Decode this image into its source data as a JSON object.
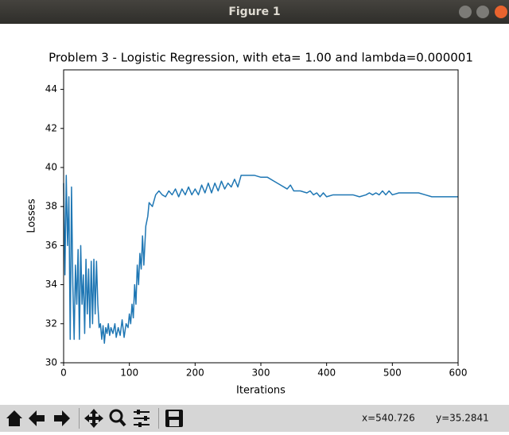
{
  "window": {
    "title": "Figure 1"
  },
  "status": {
    "x": "x=540.726",
    "y": "y=35.2841"
  },
  "chart_data": {
    "type": "line",
    "title": "Problem 3 - Logistic Regression, with eta= 1.00 and lambda=0.000001",
    "x_label": "Iterations",
    "y_label": "Losses",
    "xlim": [
      0,
      600
    ],
    "ylim": [
      30,
      45
    ],
    "xticks": [
      0,
      100,
      200,
      300,
      400,
      500,
      600
    ],
    "yticks": [
      30,
      32,
      34,
      36,
      38,
      40,
      42,
      44
    ],
    "series": [
      {
        "color": "#1f77b4",
        "x": [
          0,
          2,
          4,
          6,
          8,
          10,
          12,
          14,
          16,
          18,
          20,
          22,
          24,
          26,
          28,
          30,
          32,
          34,
          36,
          38,
          40,
          42,
          44,
          46,
          48,
          50,
          52,
          54,
          56,
          58,
          60,
          62,
          64,
          66,
          68,
          70,
          72,
          75,
          78,
          80,
          83,
          86,
          89,
          92,
          95,
          98,
          100,
          102,
          104,
          106,
          108,
          110,
          112,
          114,
          116,
          118,
          120,
          122,
          125,
          128,
          130,
          135,
          140,
          145,
          150,
          155,
          160,
          165,
          170,
          175,
          180,
          185,
          190,
          195,
          200,
          205,
          210,
          215,
          220,
          225,
          230,
          235,
          240,
          245,
          250,
          255,
          260,
          265,
          270,
          280,
          290,
          300,
          310,
          320,
          330,
          340,
          345,
          350,
          360,
          370,
          375,
          380,
          385,
          390,
          395,
          400,
          410,
          420,
          430,
          440,
          450,
          460,
          465,
          470,
          475,
          480,
          485,
          490,
          495,
          500,
          510,
          520,
          530,
          540,
          550,
          560,
          570,
          580,
          590,
          600
        ],
        "values": [
          39.2,
          34.5,
          39.6,
          36,
          38.5,
          31.2,
          39,
          34,
          31.2,
          35,
          33,
          35.8,
          31.2,
          36,
          33,
          34.5,
          31.5,
          35.3,
          32.5,
          34.8,
          31.8,
          35.2,
          32,
          35.3,
          32.5,
          35.2,
          33,
          31.8,
          32,
          31.2,
          31.9,
          31,
          31.8,
          31.5,
          32,
          31.4,
          31.8,
          31.5,
          32,
          31.3,
          31.8,
          31.4,
          32.2,
          31.3,
          32,
          31.8,
          32.5,
          32,
          33,
          32.3,
          34,
          33,
          35,
          34,
          35.6,
          34.8,
          36.5,
          35,
          37,
          37.5,
          38.2,
          38,
          38.6,
          38.8,
          38.6,
          38.5,
          38.8,
          38.6,
          38.9,
          38.5,
          38.9,
          38.6,
          39,
          38.6,
          38.9,
          38.6,
          39.1,
          38.7,
          39.2,
          38.7,
          39.2,
          38.8,
          39.3,
          38.9,
          39.2,
          39,
          39.4,
          39,
          39.6,
          39.6,
          39.6,
          39.5,
          39.5,
          39.3,
          39.1,
          38.9,
          39.1,
          38.8,
          38.8,
          38.7,
          38.8,
          38.6,
          38.7,
          38.5,
          38.7,
          38.5,
          38.6,
          38.6,
          38.6,
          38.6,
          38.5,
          38.6,
          38.7,
          38.6,
          38.7,
          38.6,
          38.8,
          38.6,
          38.8,
          38.6,
          38.7,
          38.7,
          38.7,
          38.7,
          38.6,
          38.5,
          38.5,
          38.5,
          38.5,
          38.5
        ]
      }
    ]
  }
}
